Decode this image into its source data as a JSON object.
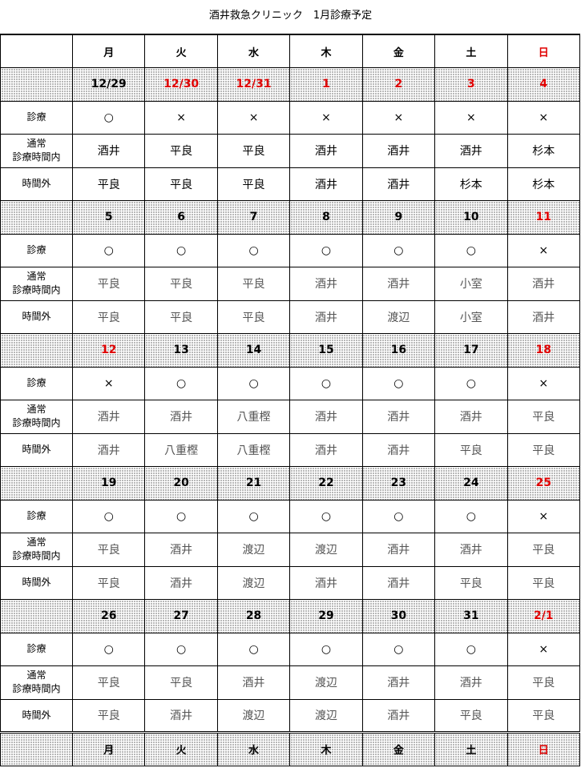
{
  "header": {
    "title": "酒井救急クリニック　1月診療予定"
  },
  "table": {
    "days": [
      "月",
      "火",
      "水",
      "木",
      "金",
      "土",
      "日"
    ],
    "row_labels": [
      "診療",
      "通常\n診療時間内",
      "時間外"
    ],
    "weeks": [
      {
        "dates": [
          "12/29",
          "12/30",
          "12/31",
          "1",
          "2",
          "3",
          "4"
        ],
        "holiday": [
          false,
          true,
          true,
          true,
          true,
          true,
          true
        ],
        "rows": [
          [
            "○",
            "×",
            "×",
            "×",
            "×",
            "×",
            "×"
          ],
          [
            "酒井",
            "平良",
            "平良",
            "酒井",
            "酒井",
            "酒井",
            "杉本"
          ],
          [
            "平良",
            "平良",
            "平良",
            "酒井",
            "酒井",
            "杉本",
            "杉本"
          ]
        ]
      },
      {
        "dates": [
          "5",
          "6",
          "7",
          "8",
          "9",
          "10",
          "11"
        ],
        "holiday": [
          false,
          false,
          false,
          false,
          false,
          false,
          true
        ],
        "rows": [
          [
            "○",
            "○",
            "○",
            "○",
            "○",
            "○",
            "×"
          ],
          [
            "平良",
            "平良",
            "平良",
            "酒井",
            "酒井",
            "小室",
            "酒井"
          ],
          [
            "平良",
            "平良",
            "平良",
            "酒井",
            "渡辺",
            "小室",
            "酒井"
          ]
        ]
      },
      {
        "dates": [
          "12",
          "13",
          "14",
          "15",
          "16",
          "17",
          "18"
        ],
        "holiday": [
          true,
          false,
          false,
          false,
          false,
          false,
          true
        ],
        "rows": [
          [
            "×",
            "○",
            "○",
            "○",
            "○",
            "○",
            "×"
          ],
          [
            "酒井",
            "酒井",
            "八重樫",
            "酒井",
            "酒井",
            "酒井",
            "平良"
          ],
          [
            "酒井",
            "八重樫",
            "八重樫",
            "酒井",
            "酒井",
            "平良",
            "平良"
          ]
        ]
      },
      {
        "dates": [
          "19",
          "20",
          "21",
          "22",
          "23",
          "24",
          "25"
        ],
        "holiday": [
          false,
          false,
          false,
          false,
          false,
          false,
          true
        ],
        "rows": [
          [
            "○",
            "○",
            "○",
            "○",
            "○",
            "○",
            "×"
          ],
          [
            "平良",
            "酒井",
            "渡辺",
            "渡辺",
            "酒井",
            "酒井",
            "平良"
          ],
          [
            "平良",
            "酒井",
            "渡辺",
            "酒井",
            "酒井",
            "平良",
            "平良"
          ]
        ]
      },
      {
        "dates": [
          "26",
          "27",
          "28",
          "29",
          "30",
          "31",
          "2/1"
        ],
        "holiday": [
          false,
          false,
          false,
          false,
          false,
          false,
          true
        ],
        "rows": [
          [
            "○",
            "○",
            "○",
            "○",
            "○",
            "○",
            "×"
          ],
          [
            "平良",
            "平良",
            "酒井",
            "渡辺",
            "酒井",
            "酒井",
            "平良"
          ],
          [
            "平良",
            "酒井",
            "渡辺",
            "渡辺",
            "酒井",
            "平良",
            "平良"
          ]
        ]
      }
    ]
  }
}
